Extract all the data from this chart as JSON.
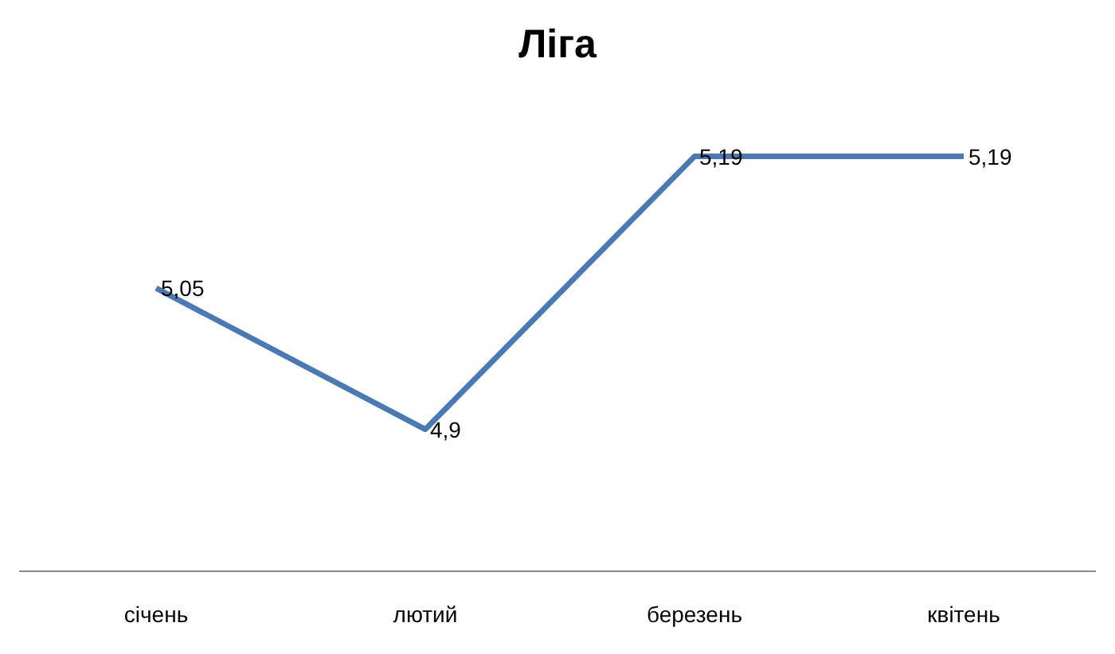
{
  "chart_data": {
    "type": "line",
    "title": "Ліга",
    "categories": [
      "січень",
      "лютий",
      "березень",
      "квітень"
    ],
    "series": [
      {
        "color": "#4a7ab5",
        "values": [
          5.05,
          4.9,
          5.19,
          5.19
        ],
        "value_labels": [
          "5,05",
          "4,9",
          "5,19",
          "5,19"
        ]
      }
    ],
    "marker": "none"
  }
}
